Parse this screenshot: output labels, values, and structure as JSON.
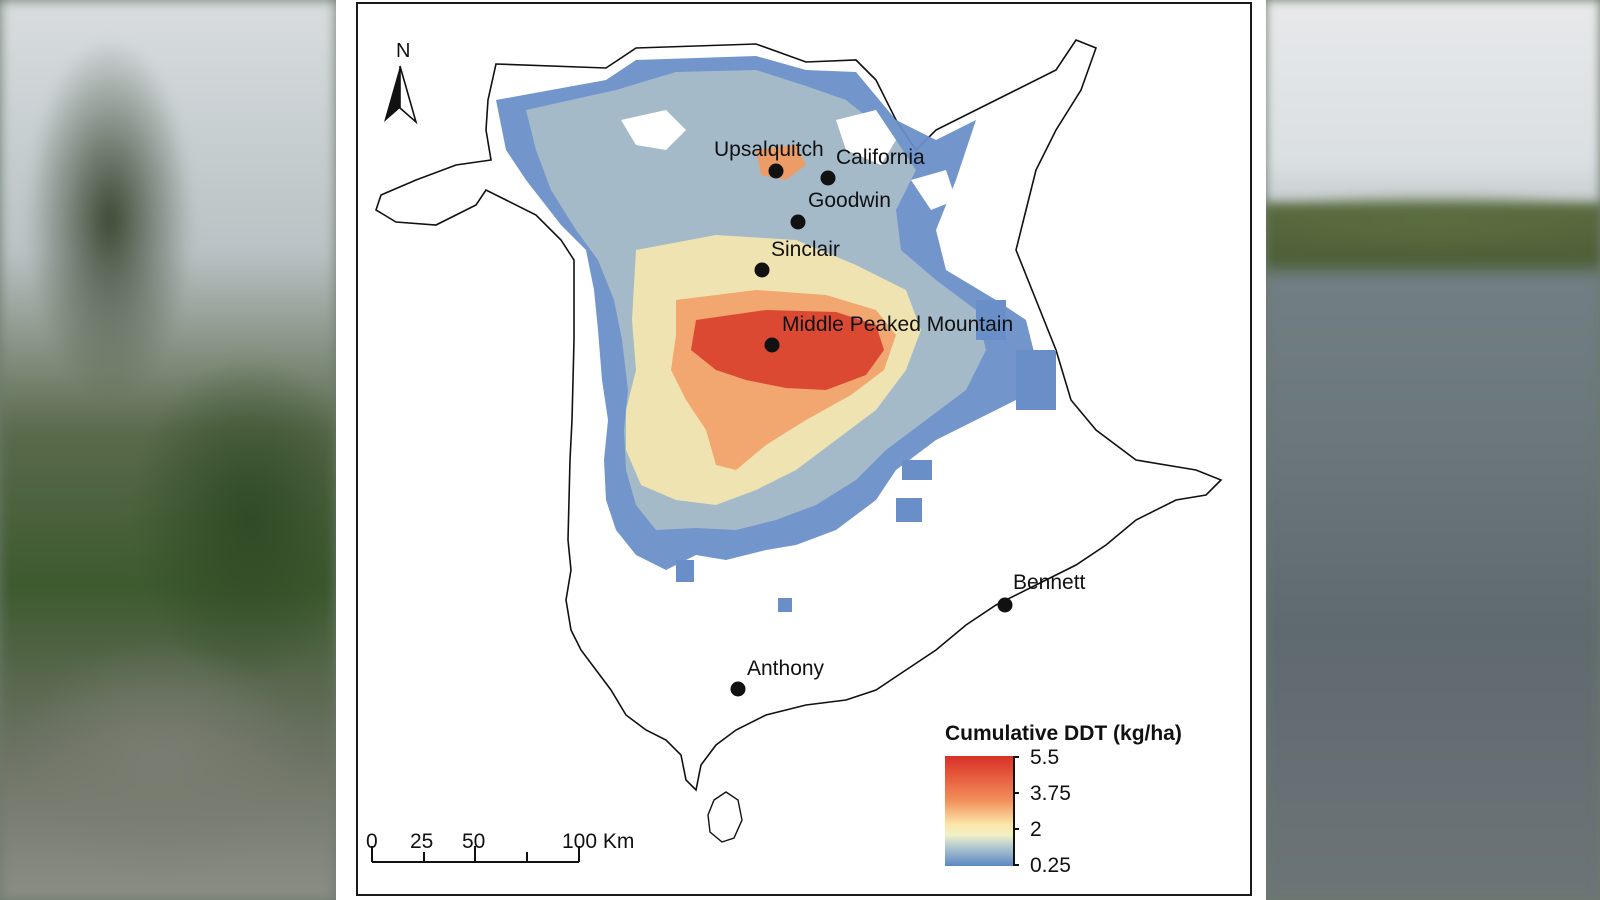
{
  "map": {
    "north_label": "N",
    "legend": {
      "title": "Cumulative DDT (kg/ha)",
      "values": [
        "5.5",
        "3.75",
        "2",
        "0.25"
      ],
      "colors": {
        "high": "#d73027",
        "mid_high": "#f28e5a",
        "mid": "#fbe6a8",
        "low": "#5b86c2"
      }
    },
    "scale_bar": {
      "labels": [
        "0",
        "25",
        "50",
        "100 Km"
      ]
    },
    "sites": [
      {
        "name": "Upsalquitch"
      },
      {
        "name": "California"
      },
      {
        "name": "Goodwin"
      },
      {
        "name": "Sinclair"
      },
      {
        "name": "Middle Peaked Mountain"
      },
      {
        "name": "Bennett"
      },
      {
        "name": "Anthony"
      }
    ]
  }
}
